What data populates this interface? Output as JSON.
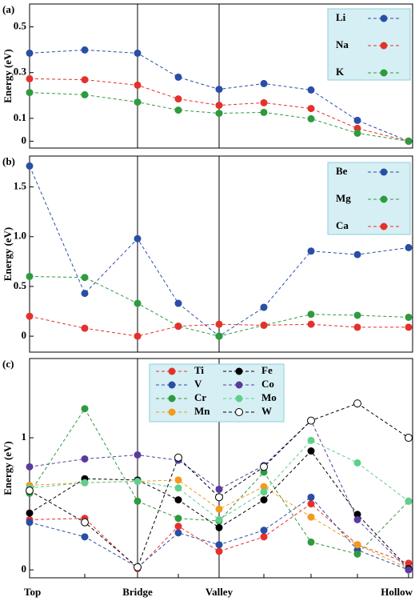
{
  "chart_data": [
    {
      "type": "line",
      "panel_label": "(a)",
      "y_label": "Energy (eV)",
      "ylim": [
        -0.03,
        0.6
      ],
      "yticks": [
        0,
        0.1,
        0.3,
        0.5
      ],
      "series": [
        {
          "name": "Li",
          "color": "#2a4ea6",
          "values": [
            0.385,
            0.399,
            0.385,
            0.28,
            0.227,
            0.252,
            0.224,
            0.091,
            0
          ]
        },
        {
          "name": "Na",
          "color": "#e5312c",
          "values": [
            0.273,
            0.269,
            0.245,
            0.185,
            0.157,
            0.168,
            0.143,
            0.056,
            0
          ]
        },
        {
          "name": "K",
          "color": "#2f9a3f",
          "values": [
            0.213,
            0.203,
            0.171,
            0.136,
            0.122,
            0.126,
            0.098,
            0.035,
            0
          ]
        }
      ]
    },
    {
      "type": "line",
      "panel_label": "(b)",
      "y_label": "Energy (eV)",
      "ylim": [
        -0.16,
        1.81
      ],
      "yticks": [
        0,
        0.5,
        {
          "value": 1,
          "label": "1.0"
        },
        1.5
      ],
      "series": [
        {
          "name": "Be",
          "color": "#2a4ea6",
          "values": [
            1.71,
            0.43,
            0.98,
            0.33,
            0.0,
            0.29,
            0.855,
            0.82,
            0.89
          ]
        },
        {
          "name": "Mg",
          "color": "#2f9a3f",
          "values": [
            0.6,
            0.59,
            0.33,
            0.1,
            0.0,
            0.11,
            0.22,
            0.21,
            0.19
          ]
        },
        {
          "name": "Ca",
          "color": "#e5312c",
          "values": [
            0.2,
            0.08,
            0.0,
            0.1,
            0.12,
            0.11,
            0.12,
            0.09,
            0.09
          ]
        }
      ]
    },
    {
      "type": "line",
      "panel_label": "(c)",
      "y_label": "Energy (eV)",
      "categories": [
        "Top",
        null,
        "Bridge",
        null,
        "Valley",
        null,
        null,
        null,
        "Hollow"
      ],
      "ylim": [
        -0.06,
        1.6
      ],
      "yticks": [
        0,
        1
      ],
      "series": [
        {
          "name": "Ti",
          "color": "#e5312c",
          "values": [
            0.38,
            0.39,
            0.01,
            0.33,
            0.14,
            0.25,
            0.5,
            0.19,
            0.05
          ]
        },
        {
          "name": "V",
          "color": "#2a4ea6",
          "values": [
            0.36,
            0.25,
            0.02,
            0.28,
            0.19,
            0.3,
            0.55,
            0.15,
            0
          ]
        },
        {
          "name": "Cr",
          "color": "#2f9a3f",
          "values": [
            0.58,
            1.22,
            0.52,
            0.39,
            0.37,
            0.74,
            0.21,
            0.12,
            0.52
          ]
        },
        {
          "name": "Mn",
          "color": "#f39a1e",
          "values": [
            0.64,
            0.66,
            0.67,
            0.68,
            0.46,
            0.63,
            0.4,
            0.19,
            0.01
          ]
        },
        {
          "name": "Fe",
          "color": "#000000",
          "values": [
            0.43,
            0.69,
            0.68,
            0.53,
            0.32,
            0.53,
            0.9,
            0.42,
            0.01
          ]
        },
        {
          "name": "Co",
          "color": "#5a3a9e",
          "values": [
            0.78,
            0.84,
            0.87,
            0.83,
            0.61,
            0.79,
            1.13,
            0.38,
            0
          ]
        },
        {
          "name": "Mo",
          "color": "#5fcf8c",
          "values": [
            0.62,
            0.66,
            0.67,
            0.62,
            0.38,
            0.59,
            0.98,
            0.81,
            0.52
          ]
        },
        {
          "name": "W",
          "color": "#ffffff",
          "values": [
            0.6,
            0.36,
            0.02,
            0.85,
            0.55,
            0.78,
            1.13,
            1.26,
            1.0
          ]
        }
      ]
    }
  ]
}
